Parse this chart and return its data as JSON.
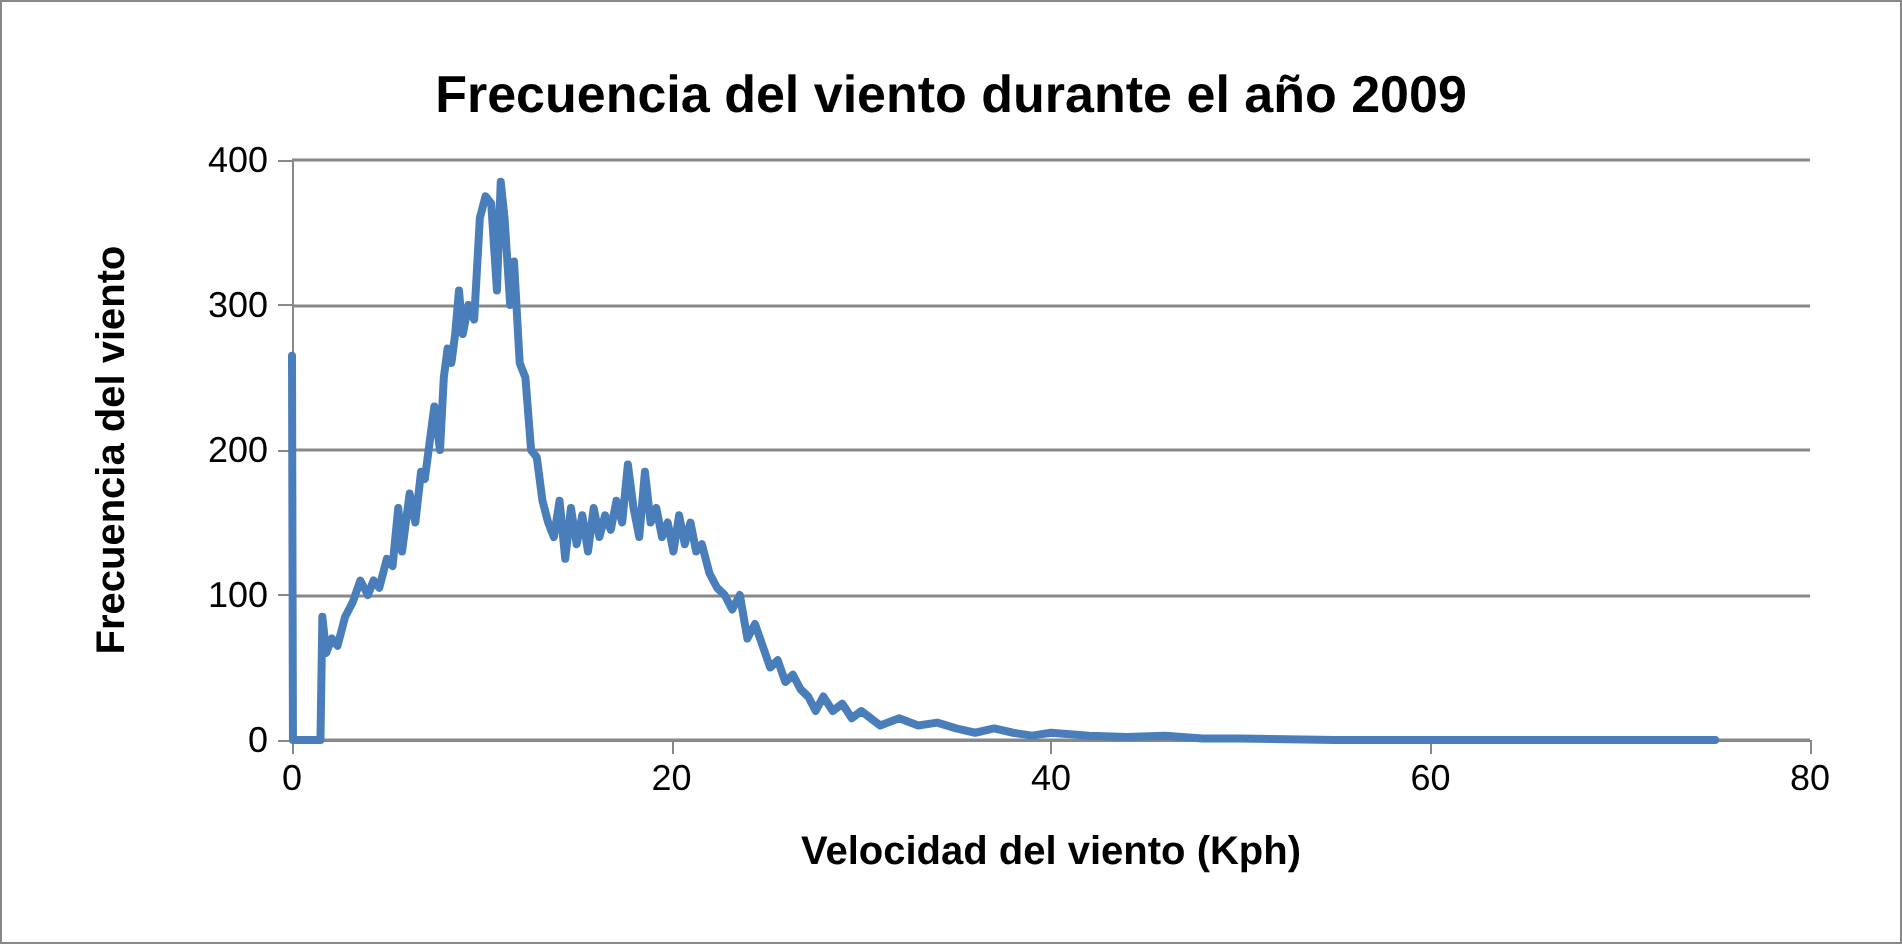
{
  "chart_data": {
    "type": "line",
    "title": "Frecuencia del viento durante el año 2009",
    "xlabel": "Velocidad del viento (Kph)",
    "ylabel": "Frecuencia del viento",
    "series": [
      {
        "color": "#4a7ebb",
        "x": [
          0,
          0.05,
          1.5,
          1.6,
          1.8,
          2.1,
          2.4,
          2.8,
          3.2,
          3.6,
          4,
          4.3,
          4.6,
          5,
          5.3,
          5.6,
          5.8,
          6.2,
          6.5,
          6.8,
          7,
          7.2,
          7.5,
          7.8,
          8,
          8.2,
          8.4,
          8.6,
          8.8,
          9,
          9.3,
          9.6,
          9.9,
          10.2,
          10.5,
          10.8,
          11,
          11.2,
          11.5,
          11.7,
          12,
          12.3,
          12.6,
          12.9,
          13.2,
          13.5,
          13.8,
          14.1,
          14.4,
          14.7,
          15,
          15.3,
          15.6,
          15.9,
          16.2,
          16.5,
          16.8,
          17.1,
          17.4,
          17.7,
          18,
          18.3,
          18.6,
          18.9,
          19.2,
          19.5,
          19.8,
          20.1,
          20.4,
          20.7,
          21,
          21.3,
          21.6,
          22,
          22.4,
          22.8,
          23.2,
          23.6,
          24,
          24.4,
          24.8,
          25.2,
          25.6,
          26,
          26.4,
          26.8,
          27.2,
          27.6,
          28,
          28.5,
          29,
          29.5,
          30,
          31,
          32,
          33,
          34,
          35,
          36,
          37,
          38,
          39,
          40,
          42,
          44,
          46,
          48,
          50,
          55,
          60,
          65,
          70,
          75
        ],
        "values": [
          265,
          0,
          0,
          85,
          60,
          70,
          65,
          85,
          95,
          110,
          100,
          110,
          105,
          125,
          120,
          160,
          130,
          170,
          150,
          185,
          180,
          200,
          230,
          200,
          250,
          270,
          260,
          280,
          310,
          280,
          300,
          290,
          360,
          375,
          370,
          310,
          385,
          360,
          300,
          330,
          260,
          250,
          200,
          195,
          165,
          150,
          140,
          165,
          125,
          160,
          135,
          155,
          130,
          160,
          140,
          155,
          145,
          165,
          150,
          190,
          160,
          140,
          185,
          150,
          160,
          140,
          150,
          130,
          155,
          135,
          150,
          130,
          135,
          115,
          105,
          100,
          90,
          100,
          70,
          80,
          65,
          50,
          55,
          40,
          45,
          35,
          30,
          20,
          30,
          20,
          25,
          15,
          20,
          10,
          15,
          10,
          12,
          8,
          5,
          8,
          5,
          3,
          5,
          3,
          2,
          3,
          1,
          1,
          0,
          0,
          0,
          0,
          0
        ]
      }
    ],
    "xlim": [
      0,
      80
    ],
    "xticks": [
      0,
      20,
      40,
      60,
      80
    ],
    "ylim": [
      0,
      400
    ],
    "yticks": [
      0,
      100,
      200,
      300,
      400
    ],
    "grid": "y",
    "marker": "none",
    "line_style": "solid"
  }
}
